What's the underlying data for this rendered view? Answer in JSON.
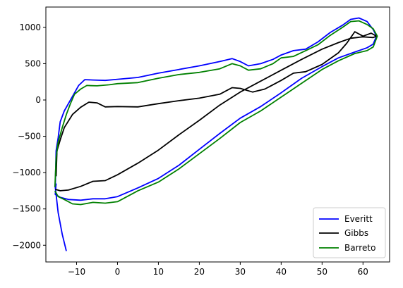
{
  "chart_data": {
    "type": "line",
    "title": "",
    "xlabel": "",
    "ylabel": "",
    "xlim": [
      -17.5,
      66.5
    ],
    "ylim": [
      -2230,
      1280
    ],
    "x_ticks": [
      -10,
      0,
      10,
      20,
      30,
      40,
      50,
      60
    ],
    "x_tick_labels": [
      "−10",
      "0",
      "10",
      "20",
      "30",
      "40",
      "50",
      "60"
    ],
    "y_ticks": [
      1000,
      500,
      0,
      -500,
      -1000,
      -1500,
      -2000
    ],
    "y_tick_labels": [
      "1000",
      "500",
      "0",
      "−500",
      "−1000",
      "−1500",
      "−2000"
    ],
    "grid": false,
    "legend": {
      "position": "lower-right"
    },
    "series": [
      {
        "name": "Everitt",
        "color": "#0000ff",
        "points": [
          [
            -12.5,
            -2080
          ],
          [
            -13.5,
            -1850
          ],
          [
            -14.5,
            -1550
          ],
          [
            -15.2,
            -1200
          ],
          [
            -15.0,
            -700
          ],
          [
            -14.5,
            -520
          ],
          [
            -14.0,
            -300
          ],
          [
            -13.0,
            -150
          ],
          [
            -11.0,
            50
          ],
          [
            -9.5,
            200
          ],
          [
            -8.0,
            280
          ],
          [
            -6.0,
            275
          ],
          [
            -3.0,
            270
          ],
          [
            0,
            285
          ],
          [
            5,
            310
          ],
          [
            10,
            370
          ],
          [
            15,
            420
          ],
          [
            20,
            470
          ],
          [
            25,
            530
          ],
          [
            28,
            570
          ],
          [
            30,
            530
          ],
          [
            32,
            470
          ],
          [
            35,
            500
          ],
          [
            38,
            560
          ],
          [
            40,
            620
          ],
          [
            43,
            680
          ],
          [
            46,
            700
          ],
          [
            49,
            800
          ],
          [
            52,
            930
          ],
          [
            55,
            1030
          ],
          [
            57,
            1110
          ],
          [
            59,
            1130
          ],
          [
            61,
            1080
          ],
          [
            62.5,
            970
          ],
          [
            63.3,
            880
          ],
          [
            62.5,
            770
          ],
          [
            61,
            720
          ],
          [
            58,
            660
          ],
          [
            54,
            580
          ],
          [
            50,
            460
          ],
          [
            45,
            300
          ],
          [
            40,
            100
          ],
          [
            35,
            -90
          ],
          [
            30,
            -250
          ],
          [
            25,
            -460
          ],
          [
            20,
            -680
          ],
          [
            15,
            -900
          ],
          [
            10,
            -1080
          ],
          [
            5,
            -1210
          ],
          [
            0,
            -1330
          ],
          [
            -3,
            -1360
          ],
          [
            -6,
            -1360
          ],
          [
            -9,
            -1380
          ],
          [
            -12,
            -1370
          ],
          [
            -14,
            -1340
          ],
          [
            -15.2,
            -1300
          ],
          [
            -15.0,
            -1150
          ]
        ]
      },
      {
        "name": "Gibbs",
        "color": "#000000",
        "points": [
          [
            -15.0,
            -1050
          ],
          [
            -14.8,
            -700
          ],
          [
            -14.0,
            -550
          ],
          [
            -13.0,
            -380
          ],
          [
            -11.0,
            -200
          ],
          [
            -9.0,
            -100
          ],
          [
            -7.0,
            -30
          ],
          [
            -5.0,
            -40
          ],
          [
            -3.0,
            -95
          ],
          [
            0,
            -90
          ],
          [
            5,
            -95
          ],
          [
            10,
            -50
          ],
          [
            15,
            -10
          ],
          [
            20,
            25
          ],
          [
            25,
            80
          ],
          [
            28,
            170
          ],
          [
            30,
            160
          ],
          [
            33,
            110
          ],
          [
            36,
            150
          ],
          [
            40,
            270
          ],
          [
            43,
            370
          ],
          [
            46,
            390
          ],
          [
            50,
            490
          ],
          [
            54,
            650
          ],
          [
            56,
            780
          ],
          [
            58,
            940
          ],
          [
            60,
            880
          ],
          [
            62,
            920
          ],
          [
            63.3,
            880
          ],
          [
            62.5,
            860
          ],
          [
            60,
            870
          ],
          [
            57,
            850
          ],
          [
            54,
            790
          ],
          [
            50,
            700
          ],
          [
            45,
            560
          ],
          [
            40,
            410
          ],
          [
            35,
            260
          ],
          [
            30,
            110
          ],
          [
            25,
            -70
          ],
          [
            20,
            -280
          ],
          [
            15,
            -480
          ],
          [
            10,
            -690
          ],
          [
            5,
            -870
          ],
          [
            0,
            -1030
          ],
          [
            -3,
            -1110
          ],
          [
            -6,
            -1120
          ],
          [
            -9,
            -1190
          ],
          [
            -12,
            -1240
          ],
          [
            -14,
            -1250
          ],
          [
            -15.2,
            -1230
          ]
        ]
      },
      {
        "name": "Barreto",
        "color": "#008000",
        "points": [
          [
            -15.3,
            -1200
          ],
          [
            -15.0,
            -800
          ],
          [
            -14.5,
            -580
          ],
          [
            -13.5,
            -380
          ],
          [
            -12.5,
            -200
          ],
          [
            -11.5,
            -50
          ],
          [
            -10.5,
            80
          ],
          [
            -9.0,
            150
          ],
          [
            -7.5,
            200
          ],
          [
            -5.0,
            195
          ],
          [
            -2.0,
            210
          ],
          [
            0,
            225
          ],
          [
            5,
            240
          ],
          [
            10,
            300
          ],
          [
            15,
            350
          ],
          [
            20,
            380
          ],
          [
            25,
            430
          ],
          [
            28,
            500
          ],
          [
            30,
            470
          ],
          [
            32,
            410
          ],
          [
            35,
            430
          ],
          [
            38,
            500
          ],
          [
            40,
            580
          ],
          [
            43,
            600
          ],
          [
            46,
            680
          ],
          [
            49,
            760
          ],
          [
            52,
            890
          ],
          [
            55,
            1000
          ],
          [
            57,
            1080
          ],
          [
            59,
            1090
          ],
          [
            61,
            1040
          ],
          [
            62.5,
            980
          ],
          [
            63.5,
            880
          ],
          [
            62.5,
            730
          ],
          [
            61,
            680
          ],
          [
            58,
            640
          ],
          [
            54,
            540
          ],
          [
            50,
            420
          ],
          [
            45,
            230
          ],
          [
            40,
            40
          ],
          [
            35,
            -150
          ],
          [
            30,
            -310
          ],
          [
            25,
            -530
          ],
          [
            20,
            -740
          ],
          [
            15,
            -950
          ],
          [
            10,
            -1130
          ],
          [
            5,
            -1250
          ],
          [
            0,
            -1400
          ],
          [
            -3,
            -1420
          ],
          [
            -6,
            -1410
          ],
          [
            -9,
            -1440
          ],
          [
            -11,
            -1430
          ],
          [
            -13,
            -1370
          ],
          [
            -14.5,
            -1330
          ],
          [
            -15.3,
            -1250
          ]
        ]
      }
    ]
  }
}
